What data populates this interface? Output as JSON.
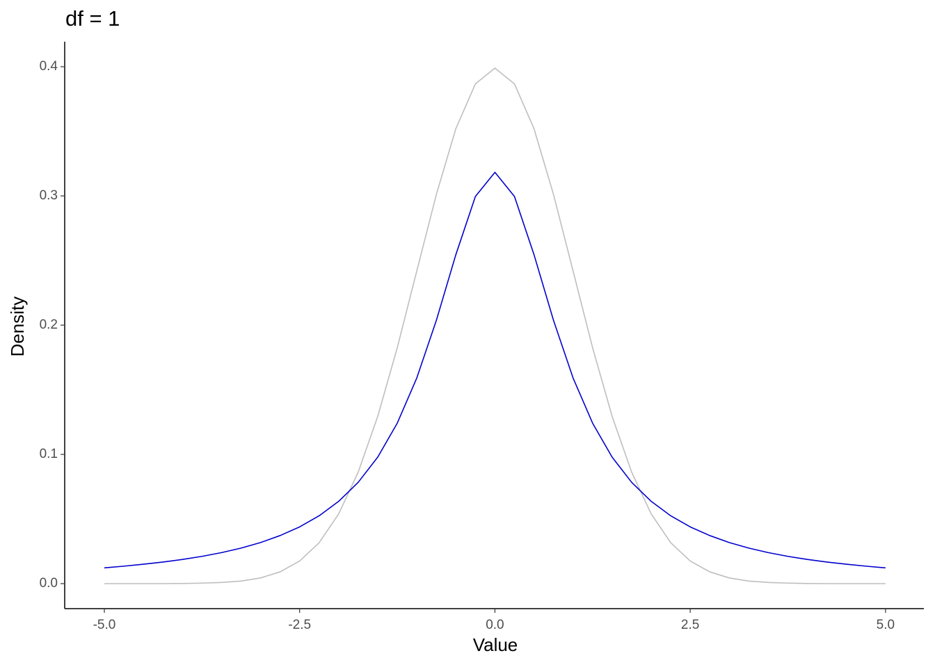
{
  "chart_data": {
    "type": "line",
    "title": "df = 1",
    "x_label": "Value",
    "y_label": "Density",
    "x": [
      -5,
      -4.75,
      -4.5,
      -4.25,
      -4,
      -3.75,
      -3.5,
      -3.25,
      -3,
      -2.75,
      -2.5,
      -2.25,
      -2,
      -1.75,
      -1.5,
      -1.25,
      -1,
      -0.75,
      -0.5,
      -0.25,
      0,
      0.25,
      0.5,
      0.75,
      1,
      1.25,
      1.5,
      1.75,
      2,
      2.25,
      2.5,
      2.75,
      3,
      3.25,
      3.5,
      3.75,
      4,
      4.25,
      4.5,
      4.75,
      5
    ],
    "series": [
      {
        "color": "#bebebe",
        "values": [
          0.0,
          0.0,
          0.0,
          0.0,
          0.0001,
          0.0004,
          0.0009,
          0.002,
          0.0044,
          0.0091,
          0.0175,
          0.0317,
          0.054,
          0.0863,
          0.1295,
          0.1826,
          0.242,
          0.3011,
          0.3521,
          0.3867,
          0.3989,
          0.3867,
          0.3521,
          0.3011,
          0.242,
          0.1826,
          0.1295,
          0.0863,
          0.054,
          0.0317,
          0.0175,
          0.0091,
          0.0044,
          0.002,
          0.0009,
          0.0004,
          0.0001,
          0.0,
          0.0,
          0.0,
          0.0
        ]
      },
      {
        "color": "#0000cd",
        "values": [
          0.0122,
          0.0135,
          0.015,
          0.0167,
          0.0187,
          0.0211,
          0.024,
          0.0275,
          0.0318,
          0.0372,
          0.0439,
          0.0525,
          0.0637,
          0.0784,
          0.0979,
          0.1242,
          0.1592,
          0.2037,
          0.2546,
          0.2996,
          0.3183,
          0.2996,
          0.2546,
          0.2037,
          0.1592,
          0.1242,
          0.0979,
          0.0784,
          0.0637,
          0.0525,
          0.0439,
          0.0372,
          0.0318,
          0.0275,
          0.024,
          0.0211,
          0.0187,
          0.0167,
          0.015,
          0.0135,
          0.0122
        ]
      }
    ],
    "xlim": [
      -5.5,
      5.5
    ],
    "ylim": [
      -0.02,
      0.42
    ],
    "xticks": [
      {
        "value": -5,
        "label": "-5.0"
      },
      {
        "value": -2.5,
        "label": "-2.5"
      },
      {
        "value": 0,
        "label": "0.0"
      },
      {
        "value": 2.5,
        "label": "2.5"
      },
      {
        "value": 5,
        "label": "5.0"
      }
    ],
    "yticks": [
      {
        "value": 0,
        "label": "0.0"
      },
      0.1,
      0.2,
      0.3,
      0.4
    ],
    "grid": false
  }
}
